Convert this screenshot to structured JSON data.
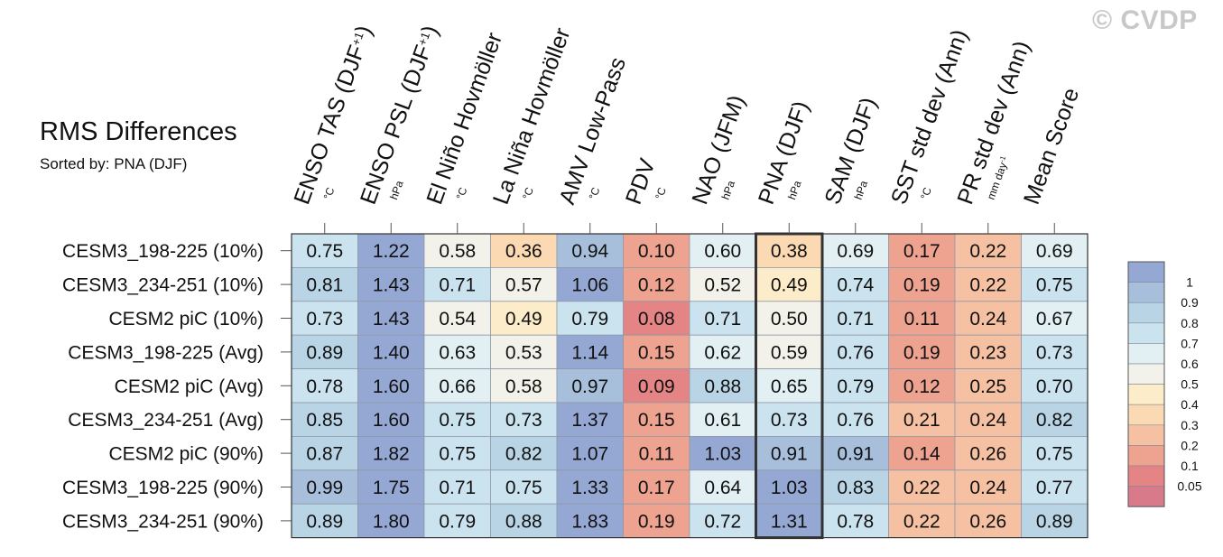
{
  "watermark": "© CVDP",
  "chart_data": {
    "type": "heatmap",
    "title": "RMS Differences",
    "subtitle": "Sorted by: PNA (DJF)",
    "columns": [
      {
        "label": "ENSO TAS (DJF",
        "sup": "+1",
        "close": ")",
        "unit": "°C"
      },
      {
        "label": "ENSO PSL (DJF",
        "sup": "+1",
        "close": ")",
        "unit": "hPa"
      },
      {
        "label": "El Niño Hovmöller",
        "sup": "",
        "close": "",
        "unit": "°C"
      },
      {
        "label": "La Niña Hovmöller",
        "sup": "",
        "close": "",
        "unit": "°C"
      },
      {
        "label": "AMV Low-Pass",
        "sup": "",
        "close": "",
        "unit": "°C"
      },
      {
        "label": "PDV",
        "sup": "",
        "close": "",
        "unit": "°C"
      },
      {
        "label": "NAO (JFM)",
        "sup": "",
        "close": "",
        "unit": "hPa"
      },
      {
        "label": "PNA (DJF)",
        "sup": "",
        "close": "",
        "unit": "hPa"
      },
      {
        "label": "SAM (DJF)",
        "sup": "",
        "close": "",
        "unit": "hPa"
      },
      {
        "label": "SST std dev (Ann)",
        "sup": "",
        "close": "",
        "unit": "°C"
      },
      {
        "label": "PR std dev (Ann)",
        "sup": "",
        "close": "",
        "unit": "mm day-1"
      },
      {
        "label": "Mean Score",
        "sup": "",
        "close": "",
        "unit": ""
      }
    ],
    "rows": [
      {
        "name": "CESM3_198-225 (10%)",
        "values": [
          0.75,
          1.22,
          0.58,
          0.36,
          0.94,
          0.1,
          0.6,
          0.38,
          0.69,
          0.17,
          0.22,
          0.69
        ]
      },
      {
        "name": "CESM3_234-251 (10%)",
        "values": [
          0.81,
          1.43,
          0.71,
          0.57,
          1.06,
          0.12,
          0.52,
          0.49,
          0.74,
          0.19,
          0.22,
          0.75
        ]
      },
      {
        "name": "CESM2 piC (10%)",
        "values": [
          0.73,
          1.43,
          0.54,
          0.49,
          0.79,
          0.08,
          0.71,
          0.5,
          0.71,
          0.11,
          0.24,
          0.67
        ]
      },
      {
        "name": "CESM3_198-225 (Avg)",
        "values": [
          0.89,
          1.4,
          0.63,
          0.53,
          1.14,
          0.15,
          0.62,
          0.59,
          0.76,
          0.19,
          0.23,
          0.73
        ]
      },
      {
        "name": "CESM2 piC (Avg)",
        "values": [
          0.78,
          1.6,
          0.66,
          0.58,
          0.97,
          0.09,
          0.88,
          0.65,
          0.79,
          0.12,
          0.25,
          0.7
        ]
      },
      {
        "name": "CESM3_234-251 (Avg)",
        "values": [
          0.85,
          1.6,
          0.75,
          0.73,
          1.37,
          0.15,
          0.61,
          0.73,
          0.76,
          0.21,
          0.24,
          0.82
        ]
      },
      {
        "name": "CESM2 piC (90%)",
        "values": [
          0.87,
          1.82,
          0.75,
          0.82,
          1.07,
          0.11,
          1.03,
          0.91,
          0.91,
          0.14,
          0.26,
          0.75
        ]
      },
      {
        "name": "CESM3_198-225 (90%)",
        "values": [
          0.99,
          1.75,
          0.71,
          0.75,
          1.33,
          0.17,
          0.64,
          1.03,
          0.83,
          0.22,
          0.24,
          0.77
        ]
      },
      {
        "name": "CESM3_234-251 (90%)",
        "values": [
          0.89,
          1.8,
          0.79,
          0.88,
          1.83,
          0.19,
          0.72,
          1.31,
          0.78,
          0.22,
          0.26,
          0.89
        ]
      }
    ],
    "highlighted_column": "PNA (DJF)",
    "colorbar": {
      "levels": [
        "1",
        "0.9",
        "0.8",
        "0.7",
        "0.6",
        "0.5",
        "0.4",
        "0.3",
        "0.2",
        "0.1",
        "0.05"
      ],
      "colors": [
        "#95a7d3",
        "#a8bfdc",
        "#b9d4e5",
        "#cbe3ee",
        "#e2eff3",
        "#f3f2ea",
        "#fcecc9",
        "#fbd9b3",
        "#f6c1a2",
        "#eea290",
        "#e58484",
        "#d97a8a"
      ]
    }
  }
}
